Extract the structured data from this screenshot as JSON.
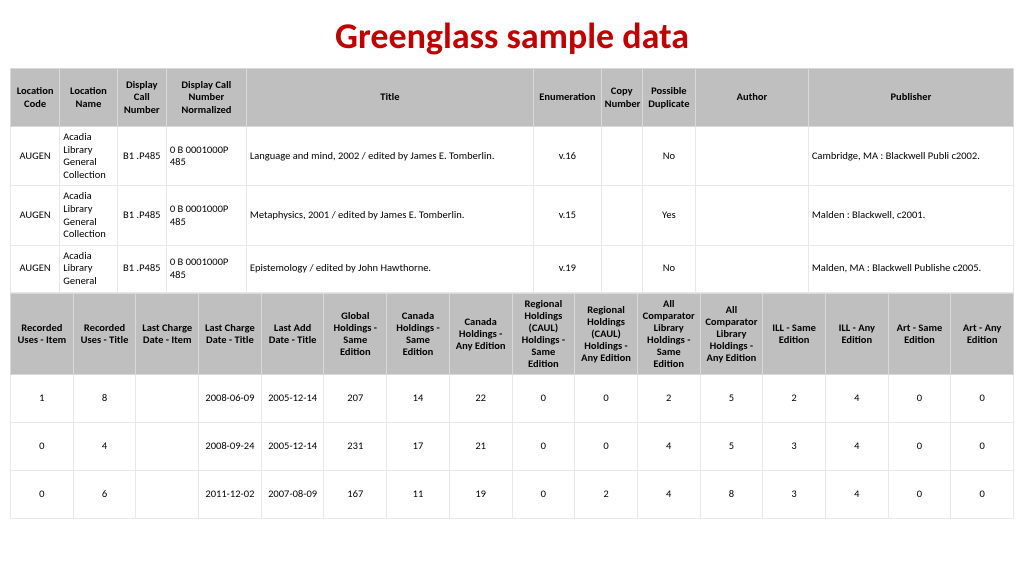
{
  "title": "Greenglass sample data",
  "colors": {
    "title": "#c00000",
    "header_bg": "#bfbfbf",
    "cell_bg": "#ffffff",
    "border": "#e8e8e8"
  },
  "table1": {
    "columns": [
      "Location Code",
      "Location Name",
      "Display Call Number",
      "Display Call Number Normalized",
      "Title",
      "Enumeration",
      "Copy Number",
      "Possible Duplicate",
      "Author",
      "Publisher"
    ],
    "rows": [
      [
        "AUGEN",
        "Acadia Library General Collection",
        "B1 .P485",
        "0          B 0001000P 485",
        "Language and mind, 2002 / edited by James E. Tomberlin.",
        "v.16",
        "",
        "No",
        "",
        "Cambridge, MA : Blackwell Publi c2002."
      ],
      [
        "AUGEN",
        "Acadia Library General Collection",
        "B1 .P485",
        "0          B 0001000P 485",
        "Metaphysics, 2001 / edited by James E. Tomberlin.",
        "v.15",
        "",
        "Yes",
        "",
        "Malden : Blackwell, c2001."
      ],
      [
        "AUGEN",
        "Acadia Library General",
        "B1 .P485",
        "0          B 0001000P 485",
        "Epistemology / edited by John Hawthorne.",
        "v.19",
        "",
        "No",
        "",
        "Malden, MA : Blackwell Publishe c2005."
      ]
    ]
  },
  "table2": {
    "columns": [
      "Recorded Uses - Item",
      "Recorded Uses - Title",
      "Last Charge Date - Item",
      "Last Charge Date - Title",
      "Last Add Date - Title",
      "Global Holdings - Same Edition",
      "Canada Holdings - Same Edition",
      "Canada Holdings - Any Edition",
      "Regional Holdings (CAUL) Holdings - Same Edition",
      "Regional Holdings (CAUL) Holdings - Any Edition",
      "All Comparator Library Holdings - Same Edition",
      "All Comparator Library Holdings - Any Edition",
      "ILL - Same Edition",
      "ILL - Any Edition",
      "Art - Same Edition",
      "Art - Any Edition"
    ],
    "rows": [
      [
        "1",
        "8",
        "",
        "2008-06-09",
        "2005-12-14",
        "207",
        "14",
        "22",
        "0",
        "0",
        "2",
        "5",
        "2",
        "4",
        "0",
        "0"
      ],
      [
        "0",
        "4",
        "",
        "2008-09-24",
        "2005-12-14",
        "231",
        "17",
        "21",
        "0",
        "0",
        "4",
        "5",
        "3",
        "4",
        "0",
        "0"
      ],
      [
        "0",
        "6",
        "",
        "2011-12-02",
        "2007-08-09",
        "167",
        "11",
        "19",
        "0",
        "2",
        "4",
        "8",
        "3",
        "4",
        "0",
        "0"
      ]
    ]
  }
}
